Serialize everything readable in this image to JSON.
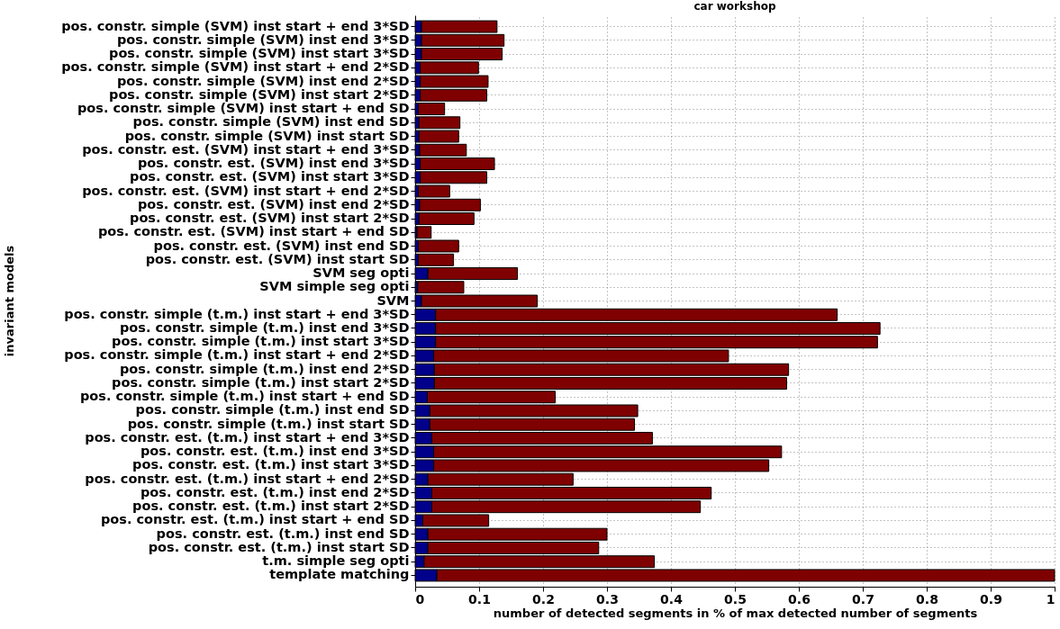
{
  "chart_data": {
    "type": "bar",
    "orientation": "horizontal",
    "stacked": true,
    "title": "car workshop",
    "xlabel": "number of detected segments in % of max detected number of segments",
    "ylabel": "invariant models",
    "categories": [
      "pos. constr. simple (SVM) inst start + end 3*SD",
      "pos. constr. simple (SVM) inst end 3*SD",
      "pos. constr. simple (SVM) inst start 3*SD",
      "pos. constr. simple (SVM) inst start + end 2*SD",
      "pos. constr. simple (SVM) inst end 2*SD",
      "pos. constr. simple (SVM) inst start 2*SD",
      "pos. constr. simple (SVM) inst start + end SD",
      "pos. constr. simple (SVM) inst end SD",
      "pos. constr. simple (SVM) inst start SD",
      "pos. constr. est. (SVM) inst start + end 3*SD",
      "pos. constr. est. (SVM) inst end 3*SD",
      "pos. constr. est. (SVM) inst start 3*SD",
      "pos. constr. est. (SVM) inst start + end 2*SD",
      "pos. constr. est. (SVM) inst end 2*SD",
      "pos. constr. est. (SVM) inst start 2*SD",
      "pos. constr. est. (SVM) inst start + end SD",
      "pos. constr. est. (SVM) inst end SD",
      "pos. constr. est. (SVM) inst start SD",
      "SVM seg opti",
      "SVM simple seg opti",
      "SVM",
      "pos. constr. simple (t.m.) inst start + end 3*SD",
      "pos. constr. simple (t.m.) inst end 3*SD",
      "pos. constr. simple (t.m.) inst start 3*SD",
      "pos. constr. simple (t.m.) inst start + end 2*SD",
      "pos. constr. simple (t.m.) inst end 2*SD",
      "pos. constr. simple (t.m.) inst start 2*SD",
      "pos. constr. simple (t.m.) inst start + end SD",
      "pos. constr. simple (t.m.) inst end SD",
      "pos. constr. simple (t.m.) inst start SD",
      "pos. constr. est. (t.m.) inst start + end 3*SD",
      "pos. constr. est. (t.m.) inst end 3*SD",
      "pos. constr. est. (t.m.) inst start 3*SD",
      "pos. constr. est. (t.m.) inst start + end 2*SD",
      "pos. constr. est. (t.m.) inst end 2*SD",
      "pos. constr. est. (t.m.) inst start 2*SD",
      "pos. constr. est. (t.m.) inst start + end SD",
      "pos. constr. est. (t.m.) inst end SD",
      "pos. constr. est. (t.m.) inst start SD",
      "t.m. simple seg opti",
      "template matching"
    ],
    "series": [
      {
        "color": "#00008b",
        "values": [
          0.01,
          0.01,
          0.01,
          0.008,
          0.008,
          0.008,
          0.005,
          0.006,
          0.006,
          0.007,
          0.008,
          0.008,
          0.005,
          0.007,
          0.006,
          0.003,
          0.005,
          0.005,
          0.02,
          0.004,
          0.01,
          0.032,
          0.032,
          0.032,
          0.029,
          0.03,
          0.03,
          0.019,
          0.023,
          0.023,
          0.026,
          0.029,
          0.029,
          0.02,
          0.026,
          0.026,
          0.012,
          0.02,
          0.02,
          0.014,
          0.034
        ]
      },
      {
        "color": "#7f0000",
        "values": [
          0.118,
          0.129,
          0.126,
          0.091,
          0.106,
          0.104,
          0.041,
          0.064,
          0.062,
          0.073,
          0.116,
          0.104,
          0.049,
          0.095,
          0.086,
          0.022,
          0.063,
          0.055,
          0.14,
          0.072,
          0.181,
          0.628,
          0.695,
          0.691,
          0.461,
          0.554,
          0.551,
          0.2,
          0.325,
          0.32,
          0.345,
          0.544,
          0.524,
          0.227,
          0.437,
          0.42,
          0.103,
          0.28,
          0.267,
          0.36,
          0.966
        ]
      }
    ],
    "xlim": [
      0,
      1
    ],
    "xticks": [
      0,
      0.1,
      0.2,
      0.3,
      0.4,
      0.5,
      0.6,
      0.7,
      0.8,
      0.9,
      1
    ],
    "grid": true
  }
}
